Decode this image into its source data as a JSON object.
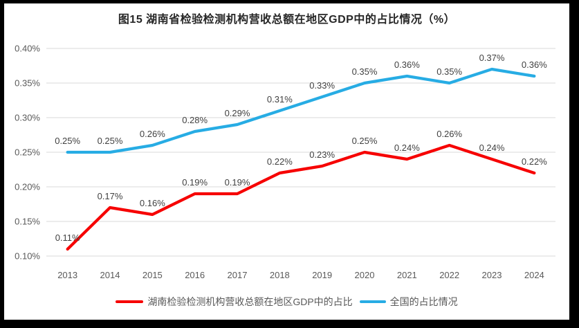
{
  "title": "图15 湖南省检验检测机构营收总额在地区GDP中的占比情况（%）",
  "colors": {
    "hunan_red": "#F60000",
    "national_blue": "#27ACE4",
    "gridline": "#D9D9D9",
    "axis_text": "#595959",
    "data_label_text": "#404040",
    "panel_white": "#FFFFFF",
    "frame_black": "#000000"
  },
  "chart_data": {
    "type": "line",
    "title": "图15 湖南省检验检测机构营收总额在地区GDP中的占比情况（%）",
    "categories": [
      "2013",
      "2014",
      "2015",
      "2016",
      "2017",
      "2018",
      "2019",
      "2020",
      "2021",
      "2022",
      "2023",
      "2024"
    ],
    "series": [
      {
        "id": "hunan",
        "name": "湖南检验检测机构营收总额在地区GDP中的占比",
        "color_key": "hunan_red",
        "values": [
          0.11,
          0.17,
          0.16,
          0.19,
          0.19,
          0.22,
          0.23,
          0.25,
          0.24,
          0.26,
          0.24,
          0.22
        ],
        "labels": [
          "0.11%",
          "0.17%",
          "0.16%",
          "0.19%",
          "0.19%",
          "0.22%",
          "0.23%",
          "0.25%",
          "0.24%",
          "0.26%",
          "0.24%",
          "0.22%"
        ]
      },
      {
        "id": "national",
        "name": "全国的占比情况",
        "color_key": "national_blue",
        "values": [
          0.25,
          0.25,
          0.26,
          0.28,
          0.29,
          0.31,
          0.33,
          0.35,
          0.36,
          0.35,
          0.37,
          0.36
        ],
        "labels": [
          "0.25%",
          "0.25%",
          "0.26%",
          "0.28%",
          "0.29%",
          "0.31%",
          "0.33%",
          "0.35%",
          "0.36%",
          "0.35%",
          "0.37%",
          "0.36%"
        ]
      }
    ],
    "xlabel": "",
    "ylabel": "",
    "ylim": [
      0.1,
      0.4
    ],
    "y_ticks": [
      "0.40%",
      "0.35%",
      "0.30%",
      "0.25%",
      "0.20%",
      "0.15%",
      "0.10%"
    ],
    "grid": true,
    "data_labels": true,
    "legend_position": "bottom"
  },
  "legend": {
    "items": [
      {
        "label": "湖南检验检测机构营收总额在地区GDP中的占比",
        "color_key": "hunan_red"
      },
      {
        "label": "全国的占比情况",
        "color_key": "national_blue"
      }
    ]
  }
}
